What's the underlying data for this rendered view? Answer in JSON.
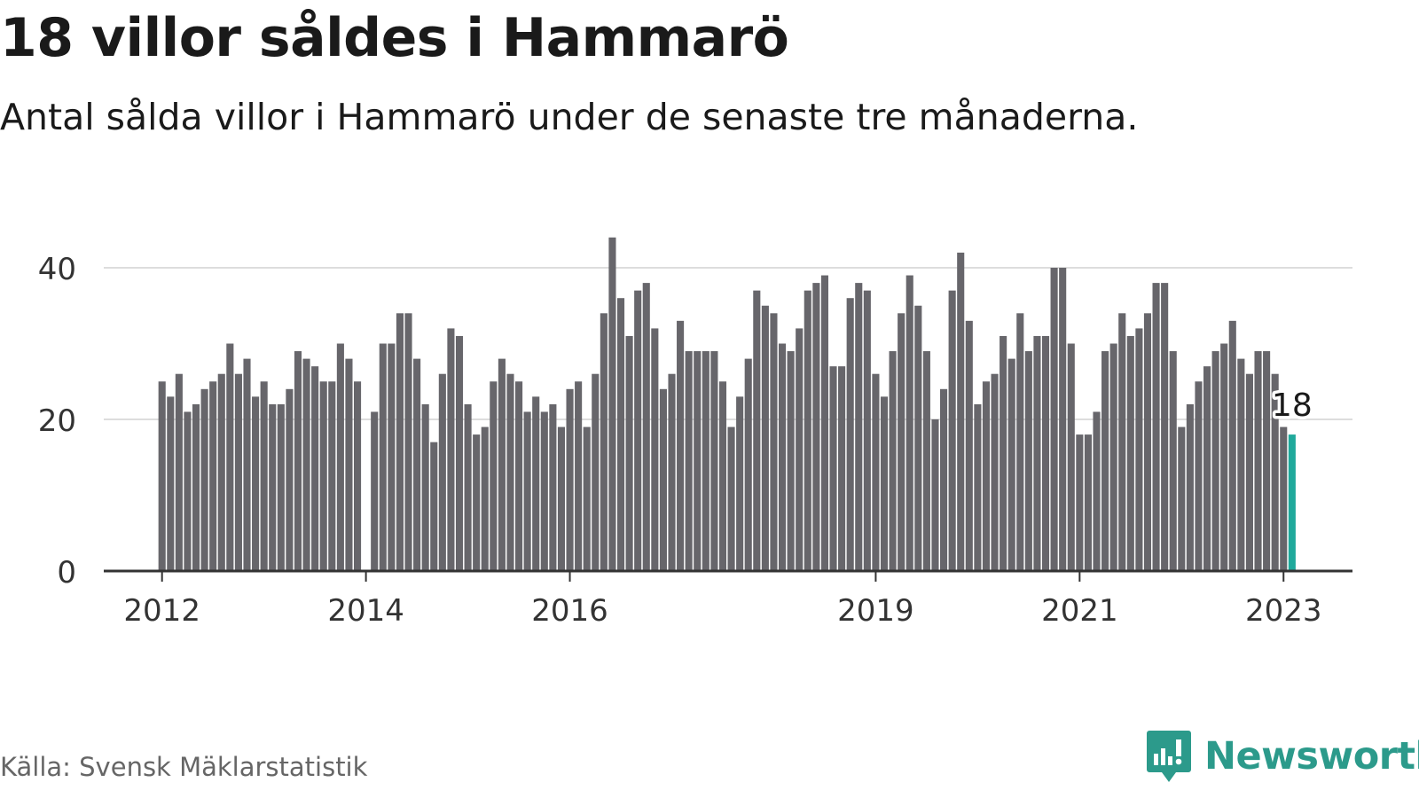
{
  "title": "18 villor såldes i Hammarö",
  "subtitle": "Antal sålda villor i Hammarö under de senaste tre månaderna.",
  "source": "Källa: Svensk Mäklarstatistik",
  "brand": {
    "name": "Newsworthy",
    "icon": "newsworthy-logo-icon"
  },
  "colors": {
    "bar": "#67666b",
    "highlight": "#1fa99b",
    "grid": "#dddddd",
    "axis": "#333333",
    "text": "#333333",
    "brand": "#2c9a8b"
  },
  "chart_data": {
    "type": "bar",
    "xlabel": "",
    "ylabel": "",
    "ylim": [
      0,
      45
    ],
    "yticks": [
      0,
      20,
      40
    ],
    "grid": true,
    "x_tick_labels": [
      "2012",
      "2014",
      "2016",
      "2019",
      "2021",
      "2023"
    ],
    "x_tick_positions": [
      "2012-01",
      "2014-01",
      "2016-01",
      "2019-01",
      "2021-01",
      "2023-01"
    ],
    "start_month": "2012-01",
    "end_month": "2023-02",
    "highlight_label": "18",
    "values": [
      25,
      23,
      26,
      21,
      22,
      24,
      25,
      26,
      30,
      26,
      28,
      23,
      25,
      22,
      22,
      24,
      29,
      28,
      27,
      25,
      25,
      30,
      28,
      25,
      null,
      21,
      30,
      30,
      34,
      34,
      28,
      22,
      17,
      26,
      32,
      31,
      22,
      18,
      19,
      25,
      28,
      26,
      25,
      21,
      23,
      21,
      22,
      19,
      24,
      25,
      19,
      26,
      34,
      44,
      36,
      31,
      37,
      38,
      32,
      24,
      26,
      33,
      29,
      29,
      29,
      29,
      25,
      19,
      23,
      28,
      37,
      35,
      34,
      30,
      29,
      32,
      37,
      38,
      39,
      27,
      27,
      36,
      38,
      37,
      26,
      23,
      29,
      34,
      39,
      35,
      29,
      20,
      24,
      37,
      42,
      33,
      22,
      25,
      26,
      31,
      28,
      34,
      29,
      31,
      31,
      40,
      40,
      30,
      18,
      18,
      21,
      29,
      30,
      34,
      31,
      32,
      34,
      38,
      38,
      29,
      19,
      22,
      25,
      27,
      29,
      30,
      33,
      28,
      26,
      29,
      29,
      26,
      19,
      18
    ]
  }
}
